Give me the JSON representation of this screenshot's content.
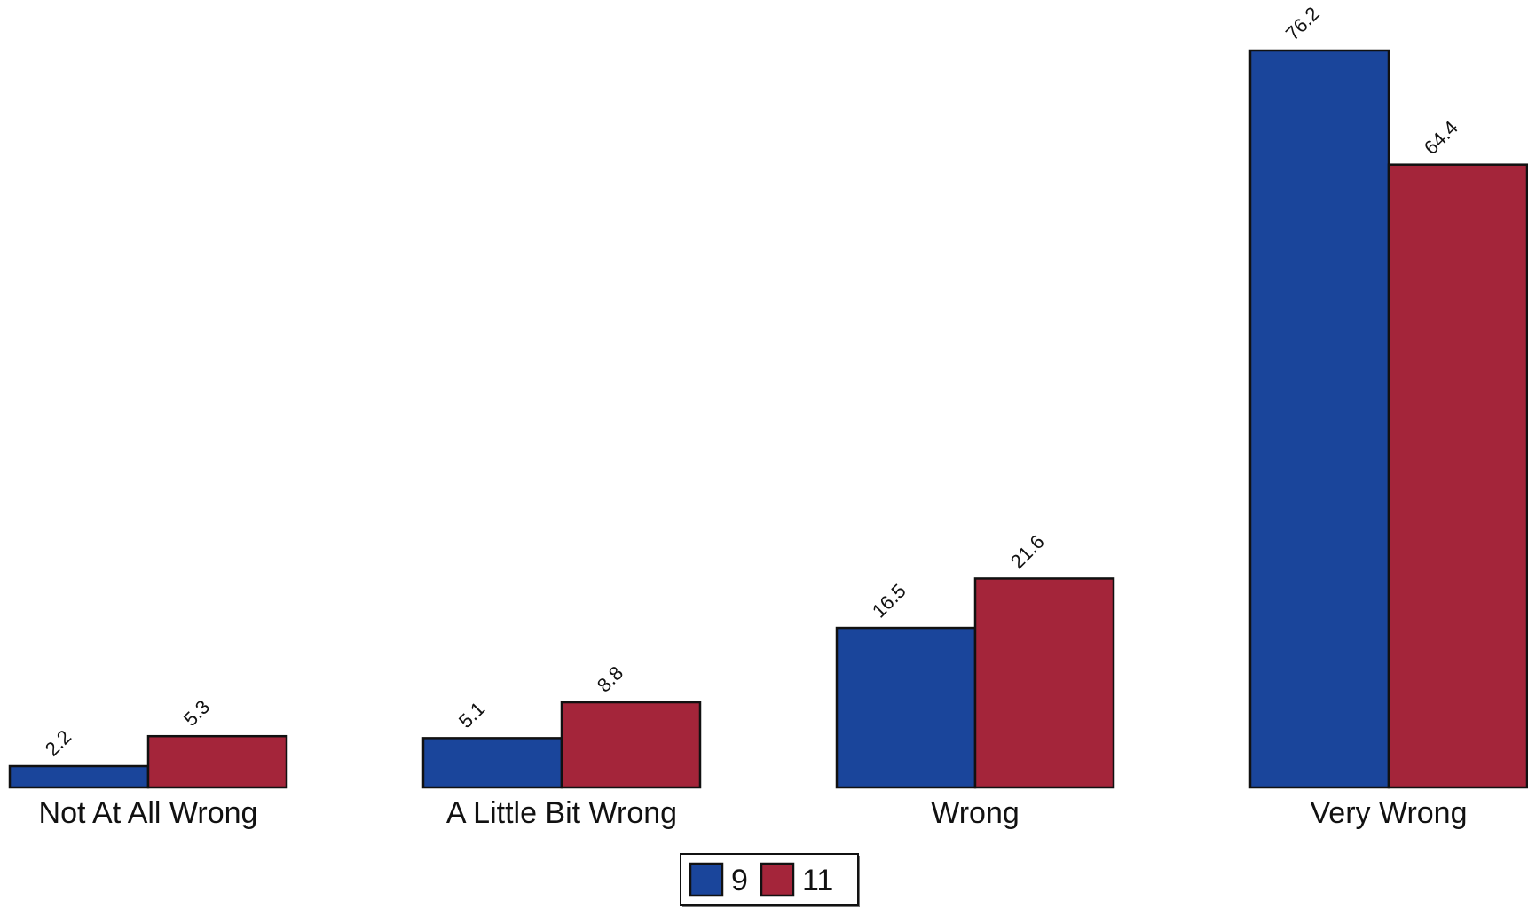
{
  "chart_data": {
    "type": "bar",
    "categories": [
      "Not At All Wrong",
      "A Little Bit Wrong",
      "Wrong",
      "Very Wrong"
    ],
    "series": [
      {
        "name": "9",
        "values": [
          2.2,
          5.1,
          16.5,
          76.2
        ],
        "color": "#1a459b"
      },
      {
        "name": "11",
        "values": [
          5.3,
          8.8,
          21.6,
          64.4
        ],
        "color": "#a4253a"
      }
    ],
    "value_labels": [
      [
        "2.2",
        "5.1",
        "16.5",
        "76.2"
      ],
      [
        "5.3",
        "8.8",
        "21.6",
        "64.4"
      ]
    ],
    "title": "",
    "xlabel": "",
    "ylabel": "",
    "ylim": [
      0,
      80
    ],
    "grid": false,
    "legend": {
      "placement": "bottom-center",
      "entries": [
        "9",
        "11"
      ]
    }
  }
}
